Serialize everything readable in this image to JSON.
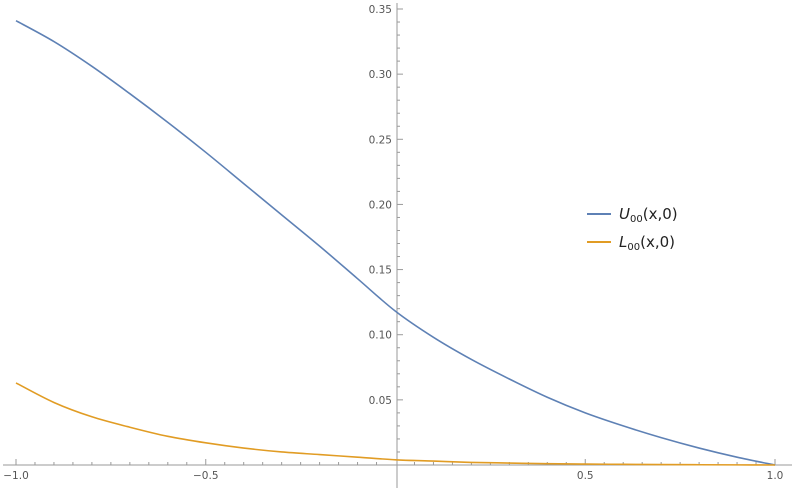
{
  "chart_data": {
    "type": "line",
    "title": "",
    "xlabel": "",
    "ylabel": "",
    "xlim": [
      -1.0,
      1.0
    ],
    "ylim": [
      0,
      0.35
    ],
    "grid": false,
    "legend_position": "right",
    "x_ticks": [
      "-1.0",
      "-0.5",
      "0.5",
      "1.0"
    ],
    "y_ticks": [
      "0.05",
      "0.10",
      "0.15",
      "0.20",
      "0.25",
      "0.30",
      "0.35"
    ],
    "series": [
      {
        "name_main": "U",
        "name_sub": "00",
        "name_args": "(x,0)",
        "color": "#5e81b5",
        "x": [
          -1.0,
          -0.9,
          -0.8,
          -0.7,
          -0.6,
          -0.5,
          -0.4,
          -0.3,
          -0.2,
          -0.1,
          0.0,
          0.1,
          0.2,
          0.3,
          0.4,
          0.5,
          0.6,
          0.7,
          0.8,
          0.9,
          1.0
        ],
        "y": [
          0.341,
          0.325,
          0.306,
          0.285,
          0.263,
          0.24,
          0.216,
          0.192,
          0.168,
          0.143,
          0.118,
          0.098,
          0.081,
          0.066,
          0.052,
          0.04,
          0.03,
          0.021,
          0.013,
          0.006,
          0.0
        ]
      },
      {
        "name_main": "L",
        "name_sub": "00",
        "name_args": "(x,0)",
        "color": "#e19c24",
        "x": [
          -1.0,
          -0.9,
          -0.8,
          -0.7,
          -0.6,
          -0.5,
          -0.4,
          -0.3,
          -0.2,
          -0.1,
          0.0,
          0.1,
          0.2,
          0.3,
          0.4,
          0.5,
          0.6,
          0.7,
          0.8,
          0.9,
          1.0
        ],
        "y": [
          0.063,
          0.048,
          0.037,
          0.029,
          0.022,
          0.017,
          0.013,
          0.01,
          0.008,
          0.006,
          0.004,
          0.003,
          0.002,
          0.0015,
          0.001,
          0.0007,
          0.0005,
          0.0003,
          0.0002,
          0.0001,
          0.0
        ]
      }
    ]
  }
}
